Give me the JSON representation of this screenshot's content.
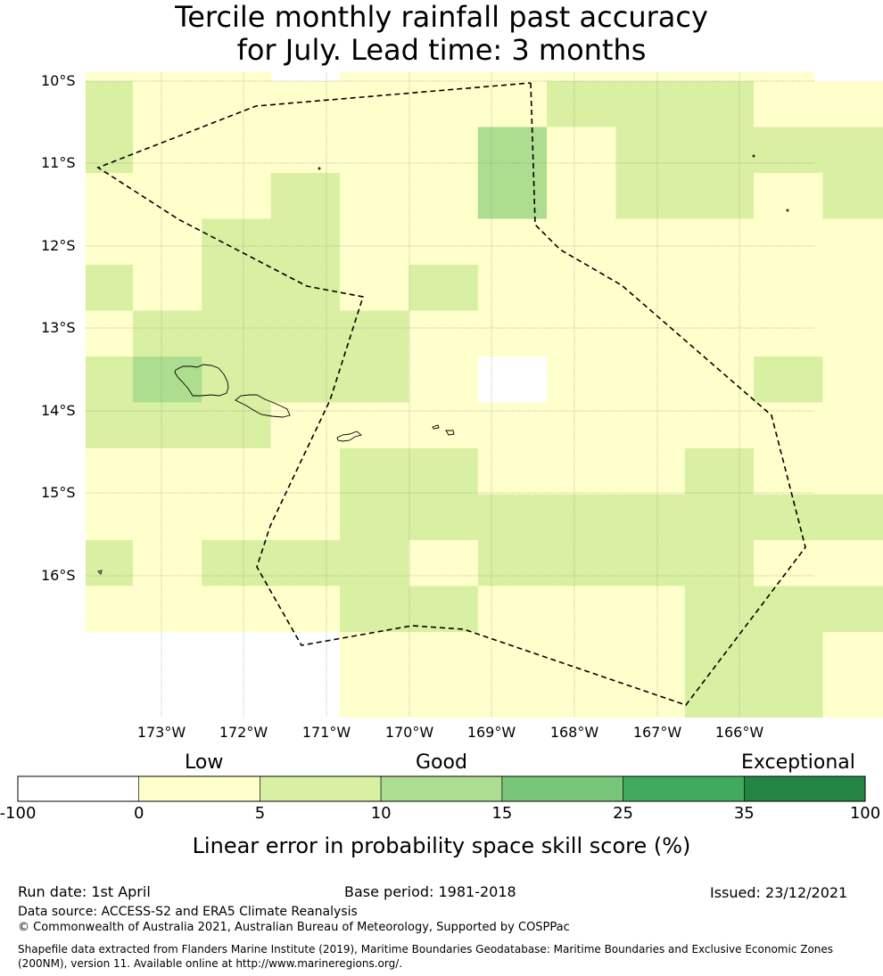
{
  "title_line1": "Tercile monthly rainfall past accuracy",
  "title_line2": "for July. Lead time: 3 months",
  "map": {
    "lat_labels": [
      "10°S",
      "11°S",
      "12°S",
      "13°S",
      "14°S",
      "15°S",
      "16°S"
    ],
    "lon_labels": [
      "173°W",
      "172°W",
      "171°W",
      "170°W",
      "169°W",
      "168°W",
      "167°W",
      "166°W"
    ],
    "grid_legend_classes": {
      "W": "-100 to 0",
      "Y": "0 to 5",
      "L": "5 to 10",
      "M": "10 to 15"
    },
    "grid_rows": [
      "LYYYYYYLLLYYYY",
      "LYYYYYMYLLLLLY",
      "YYYLYYMYLLYLLL",
      "YYLLYYYYYYYYYY",
      "LYLLYLYYYYYYYY",
      "YLLLLYYYYYYYYY",
      "LMLLLYWYYYLYYY",
      "LLLYYYYYYYYYLY",
      "YYYYLLYYYLYYYY",
      "YYYYLLLLLLLLLY",
      "LYLLLYLLLLYYYL",
      "YYYYLLYYYLLLLL",
      "WWWWYYYYYLLYYY"
    ],
    "map_cells_class": "Y"
  },
  "legend": {
    "category_labels": [
      "Low",
      "Good",
      "Exceptional"
    ],
    "bins": [
      {
        "from": -100,
        "to": 0,
        "color": "#ffffff"
      },
      {
        "from": 0,
        "to": 5,
        "color": "#ffffcc"
      },
      {
        "from": 5,
        "to": 10,
        "color": "#d9f0a3"
      },
      {
        "from": 10,
        "to": 15,
        "color": "#addd8e"
      },
      {
        "from": 15,
        "to": 25,
        "color": "#78c679"
      },
      {
        "from": 25,
        "to": 35,
        "color": "#41ab5d"
      },
      {
        "from": 35,
        "to": 100,
        "color": "#238443"
      }
    ],
    "tick_labels": [
      "-100",
      "0",
      "5",
      "10",
      "15",
      "25",
      "35",
      "100"
    ],
    "axis_label": "Linear error in probability space skill score (%)"
  },
  "footer": {
    "run_date": "Run date: 1st April",
    "base_period": "Base period: 1981-2018",
    "issued": "Issued: 23/12/2021",
    "data_source": "Data source: ACCESS-S2 and ERA5 Climate Reanalysis",
    "copyright": "© Commonwealth of Australia 2021, Australian Bureau of Meteorology, Supported by COSPPac",
    "shapefile": "Shapefile data extracted from Flanders Marine Institute (2019), Maritime Boundaries Geodatabase: Maritime Boundaries and Exclusive Economic Zones (200NM), version 11. Available online at http://www.marineregions.org/."
  }
}
